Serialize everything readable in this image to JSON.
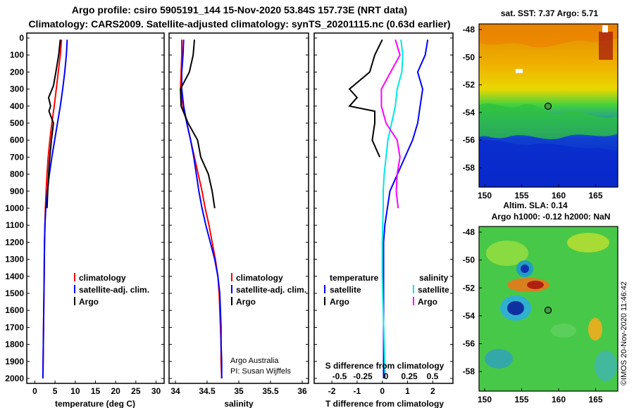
{
  "titles": {
    "line1": "Argo profile: csiro 5905191_144 15-Nov-2020 53.84S 157.73E (NRT data)",
    "line2": "Climatology: CARS2009. Satellite-adjusted climatology: synTS_20201115.nc (0.63d earlier)"
  },
  "colors": {
    "climatology": "#ff0000",
    "satellite": "#0000ff",
    "argo": "#000000",
    "satellite_s": "#00e6e6",
    "argo_s": "#ff00ff"
  },
  "depth_ticks": [
    0,
    100,
    200,
    300,
    400,
    500,
    600,
    700,
    800,
    900,
    1000,
    1100,
    1200,
    1300,
    1400,
    1500,
    1600,
    1700,
    1800,
    1900,
    2000
  ],
  "panel1": {
    "xlabel": "temperature (deg C)",
    "xticks": [
      0,
      5,
      10,
      15,
      20,
      25,
      30
    ],
    "legend": [
      "climatology",
      "satellite-adj. clim.",
      "Argo"
    ]
  },
  "panel2": {
    "xlabel": "salinity",
    "xticks": [
      "34",
      "34.5",
      "35",
      "35.5",
      "36"
    ],
    "legend": [
      "climatology",
      "satellite-adj. clim.",
      "Argo"
    ],
    "credit1": "Argo Australia",
    "credit2": "PI: Susan Wijffels"
  },
  "panel3": {
    "xlabel": "T difference from climatology",
    "xticks": [
      "-2",
      "-1",
      "0",
      "1",
      "2"
    ],
    "s_label": "S difference from climatology",
    "s_ticks": [
      "-0.5",
      "-0.25",
      "0",
      "0.25",
      "0.5"
    ],
    "legend_t_title": "temperature",
    "legend_s_title": "salinity",
    "legend_t": [
      "satellite",
      "Argo"
    ],
    "legend_s": [
      "satellite",
      "Argo"
    ]
  },
  "map1": {
    "title": "sat. SST: 7.37 Argo: 5.71",
    "yticks": [
      "-48",
      "-50",
      "-52",
      "-54",
      "-56",
      "-58"
    ],
    "xticks": [
      "150",
      "155",
      "160",
      "165"
    ]
  },
  "map2": {
    "title1": "Altim. SLA: 0.14",
    "title2": "Argo h1000: -0.12 h2000: NaN",
    "yticks": [
      "-48",
      "-50",
      "-52",
      "-54",
      "-56",
      "-58"
    ],
    "xticks": [
      "150",
      "155",
      "160",
      "165"
    ],
    "stamp": "©IMOS 20-Nov-2020 11:46:42"
  },
  "chart_data": [
    {
      "type": "line",
      "title": "",
      "xlabel": "temperature (deg C)",
      "ylabel": "",
      "xlim": [
        -2,
        32
      ],
      "ylim": [
        2050,
        -20
      ],
      "series": [
        {
          "name": "climatology",
          "points": [
            [
              6.6,
              10
            ],
            [
              6.3,
              100
            ],
            [
              5.8,
              200
            ],
            [
              5.3,
              300
            ],
            [
              4.8,
              400
            ],
            [
              4.2,
              500
            ],
            [
              3.7,
              600
            ],
            [
              3.3,
              700
            ],
            [
              3.0,
              800
            ],
            [
              2.8,
              900
            ],
            [
              2.6,
              1000
            ],
            [
              2.5,
              1100
            ],
            [
              2.4,
              1200
            ],
            [
              2.35,
              1300
            ],
            [
              2.3,
              1400
            ],
            [
              2.25,
              1500
            ],
            [
              2.2,
              1600
            ],
            [
              2.15,
              1700
            ],
            [
              2.1,
              1800
            ],
            [
              2.05,
              1900
            ],
            [
              2.0,
              2000
            ]
          ]
        },
        {
          "name": "satellite-adj. clim.",
          "points": [
            [
              8.0,
              10
            ],
            [
              7.8,
              100
            ],
            [
              7.4,
              200
            ],
            [
              6.9,
              300
            ],
            [
              6.3,
              400
            ],
            [
              5.6,
              500
            ],
            [
              4.9,
              600
            ],
            [
              4.2,
              700
            ],
            [
              3.6,
              800
            ],
            [
              3.1,
              900
            ],
            [
              2.7,
              1000
            ],
            [
              2.5,
              1100
            ],
            [
              2.4,
              1200
            ],
            [
              2.35,
              1300
            ],
            [
              2.3,
              1400
            ],
            [
              2.25,
              1500
            ],
            [
              2.2,
              1600
            ],
            [
              2.15,
              1700
            ],
            [
              2.1,
              1800
            ],
            [
              2.05,
              1900
            ],
            [
              2.0,
              2000
            ]
          ]
        },
        {
          "name": "Argo",
          "points": [
            [
              6.3,
              10
            ],
            [
              5.9,
              100
            ],
            [
              5.2,
              200
            ],
            [
              4.6,
              280
            ],
            [
              3.4,
              350
            ],
            [
              3.9,
              400
            ],
            [
              3.5,
              430
            ],
            [
              4.6,
              500
            ],
            [
              4.1,
              600
            ],
            [
              3.7,
              700
            ],
            [
              3.4,
              800
            ],
            [
              3.2,
              900
            ],
            [
              3.0,
              1000
            ]
          ]
        }
      ]
    },
    {
      "type": "line",
      "title": "",
      "xlabel": "salinity",
      "ylabel": "",
      "xlim": [
        33.9,
        36.1
      ],
      "ylim": [
        2050,
        -20
      ],
      "series": [
        {
          "name": "climatology",
          "points": [
            [
              34.1,
              10
            ],
            [
              34.1,
              100
            ],
            [
              34.09,
              200
            ],
            [
              34.08,
              300
            ],
            [
              34.12,
              400
            ],
            [
              34.18,
              500
            ],
            [
              34.24,
              600
            ],
            [
              34.3,
              700
            ],
            [
              34.36,
              800
            ],
            [
              34.42,
              900
            ],
            [
              34.47,
              1000
            ],
            [
              34.53,
              1100
            ],
            [
              34.58,
              1200
            ],
            [
              34.63,
              1300
            ],
            [
              34.67,
              1400
            ],
            [
              34.69,
              1500
            ],
            [
              34.7,
              1600
            ],
            [
              34.71,
              1700
            ],
            [
              34.72,
              1800
            ],
            [
              34.72,
              1900
            ],
            [
              34.73,
              2000
            ]
          ]
        },
        {
          "name": "satellite-adj. clim.",
          "points": [
            [
              34.13,
              10
            ],
            [
              34.12,
              100
            ],
            [
              34.1,
              200
            ],
            [
              34.1,
              300
            ],
            [
              34.13,
              400
            ],
            [
              34.18,
              500
            ],
            [
              34.24,
              600
            ],
            [
              34.29,
              700
            ],
            [
              34.33,
              800
            ],
            [
              34.37,
              900
            ],
            [
              34.42,
              1000
            ],
            [
              34.48,
              1100
            ],
            [
              34.55,
              1200
            ],
            [
              34.62,
              1300
            ],
            [
              34.67,
              1400
            ],
            [
              34.7,
              1500
            ],
            [
              34.71,
              1600
            ],
            [
              34.72,
              1700
            ],
            [
              34.72,
              1800
            ],
            [
              34.73,
              1900
            ],
            [
              34.73,
              2000
            ]
          ]
        },
        {
          "name": "Argo",
          "points": [
            [
              34.3,
              10
            ],
            [
              34.28,
              100
            ],
            [
              34.22,
              200
            ],
            [
              34.08,
              300
            ],
            [
              34.09,
              400
            ],
            [
              34.2,
              500
            ],
            [
              34.35,
              600
            ],
            [
              34.4,
              700
            ],
            [
              34.52,
              800
            ],
            [
              34.58,
              900
            ],
            [
              34.62,
              1000
            ]
          ]
        }
      ]
    },
    {
      "type": "line",
      "title": "",
      "xlabel": "T difference from climatology",
      "ylabel": "",
      "xlim": [
        -2.7,
        2.8
      ],
      "ylim": [
        2050,
        -20
      ],
      "series": [
        {
          "name": "temperature satellite",
          "points": [
            [
              1.8,
              10
            ],
            [
              1.7,
              100
            ],
            [
              1.4,
              200
            ],
            [
              1.6,
              300
            ],
            [
              1.5,
              400
            ],
            [
              1.4,
              500
            ],
            [
              1.2,
              600
            ],
            [
              0.9,
              700
            ],
            [
              0.6,
              800
            ],
            [
              0.3,
              900
            ],
            [
              0.2,
              1000
            ],
            [
              0.1,
              1100
            ],
            [
              0.05,
              1200
            ],
            [
              0.05,
              1400
            ],
            [
              0.05,
              1600
            ],
            [
              0.05,
              1800
            ],
            [
              0.05,
              2000
            ]
          ]
        },
        {
          "name": "temperature Argo",
          "points": [
            [
              0.0,
              10
            ],
            [
              -0.3,
              100
            ],
            [
              -0.5,
              200
            ],
            [
              -1.3,
              300
            ],
            [
              -1.0,
              350
            ],
            [
              -1.3,
              400
            ],
            [
              -0.3,
              430
            ],
            [
              -0.3,
              500
            ],
            [
              -0.4,
              600
            ],
            [
              -0.1,
              700
            ]
          ]
        },
        {
          "name": "salinity satellite",
          "points": [
            [
              0.16,
              10
            ],
            [
              0.18,
              100
            ],
            [
              0.17,
              200
            ],
            [
              0.12,
              300
            ],
            [
              0.1,
              400
            ],
            [
              0.06,
              500
            ],
            [
              0.02,
              600
            ],
            [
              0.0,
              700
            ],
            [
              -0.02,
              800
            ],
            [
              -0.03,
              900
            ],
            [
              -0.03,
              1000
            ],
            [
              -0.04,
              1200
            ],
            [
              -0.04,
              1400
            ],
            [
              -0.03,
              1600
            ],
            [
              -0.02,
              1800
            ],
            [
              -0.01,
              2000
            ]
          ]
        },
        {
          "name": "salinity Argo",
          "points": [
            [
              0.1,
              10
            ],
            [
              0.15,
              100
            ],
            [
              0.05,
              200
            ],
            [
              -0.05,
              300
            ],
            [
              -0.05,
              400
            ],
            [
              0.0,
              500
            ],
            [
              0.12,
              600
            ],
            [
              0.15,
              700
            ],
            [
              0.12,
              800
            ],
            [
              0.11,
              900
            ],
            [
              0.13,
              1000
            ]
          ]
        }
      ]
    }
  ]
}
